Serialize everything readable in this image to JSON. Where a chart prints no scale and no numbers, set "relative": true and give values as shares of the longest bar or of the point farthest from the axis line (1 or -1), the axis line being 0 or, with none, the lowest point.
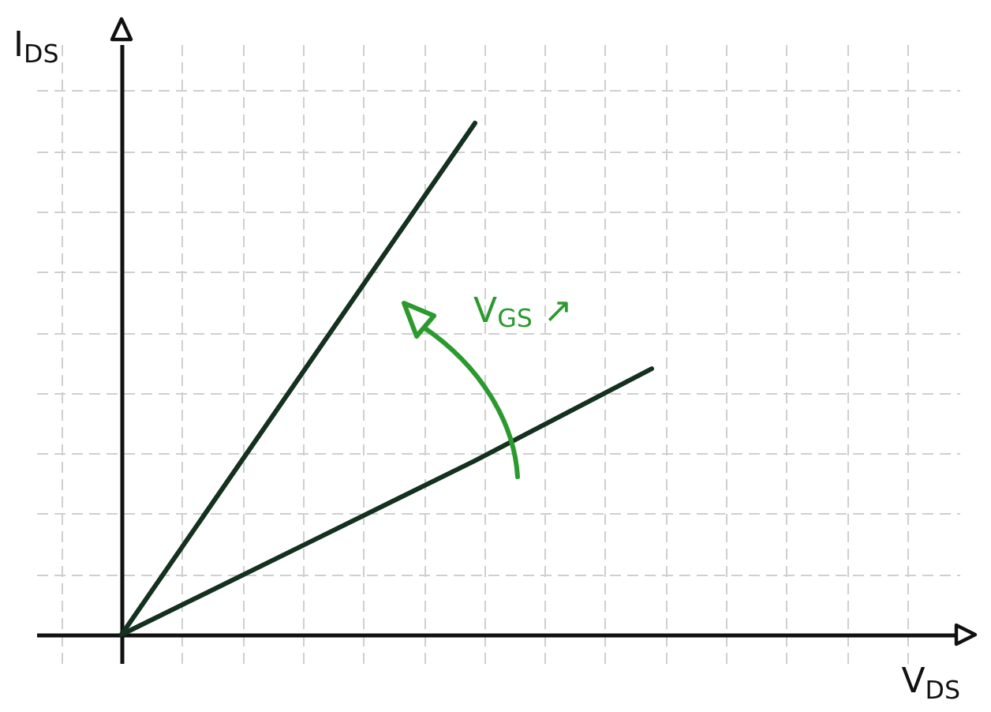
{
  "chart_data": {
    "type": "line",
    "xlabel": "V$_{DS}$",
    "ylabel": "I$_{DS}$",
    "annotations": [
      "V$_{GS}$ ↗"
    ],
    "categories": [
      null,
      null,
      null,
      null
    ],
    "relative": true,
    "grid": true,
    "series": [
      {
        "color": "#14301f",
        "values": [
          0,
          0.5,
          1,
          null
        ]
      },
      {
        "color": "#14301f",
        "values": [
          0,
          0.17,
          0.34,
          0.52
        ]
      }
    ]
  }
}
